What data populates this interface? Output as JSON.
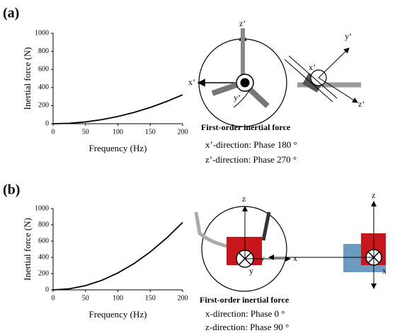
{
  "chart_data": [
    {
      "type": "line",
      "label": "(a)",
      "xlabel": "Frequency (Hz)",
      "ylabel": "Inertial force (N)",
      "x": [
        0,
        25,
        50,
        75,
        100,
        125,
        150,
        175,
        200
      ],
      "series": [
        {
          "color": "#000000",
          "values": [
            0,
            5,
            20,
            45,
            80,
            125,
            180,
            245,
            320
          ]
        }
      ],
      "xlim": [
        0,
        200
      ],
      "xticks": [
        0,
        50,
        100,
        150,
        200
      ],
      "ylim": [
        0,
        1000
      ],
      "yticks": [
        0,
        200,
        400,
        600,
        800,
        1000
      ],
      "diagram_labels": [
        "z’",
        "x’",
        "y’",
        "y’",
        "x’",
        "z’"
      ],
      "caption": {
        "heading": "First-order inertial force",
        "lines": [
          "x’-direction: Phase 180 °",
          "z’-direction: Phase 270 °"
        ]
      }
    },
    {
      "type": "line",
      "label": "(b)",
      "xlabel": "Frequency (Hz)",
      "ylabel": "Inertial force (N)",
      "x": [
        0,
        25,
        50,
        75,
        100,
        125,
        150,
        175,
        200
      ],
      "series": [
        {
          "color": "#000000",
          "values": [
            0,
            13,
            52,
            117,
            208,
            324,
            467,
            635,
            830
          ]
        }
      ],
      "xlim": [
        0,
        200
      ],
      "xticks": [
        0,
        50,
        100,
        150,
        200
      ],
      "ylim": [
        0,
        1000
      ],
      "yticks": [
        0,
        200,
        400,
        600,
        800,
        1000
      ],
      "diagram_labels": [
        "z",
        "x",
        "y",
        "y",
        "z",
        "x"
      ],
      "caption": {
        "heading": "First-order inertial force",
        "lines": [
          "x-direction: Phase 0 °",
          "z-direction: Phase 90 °"
        ]
      }
    }
  ]
}
